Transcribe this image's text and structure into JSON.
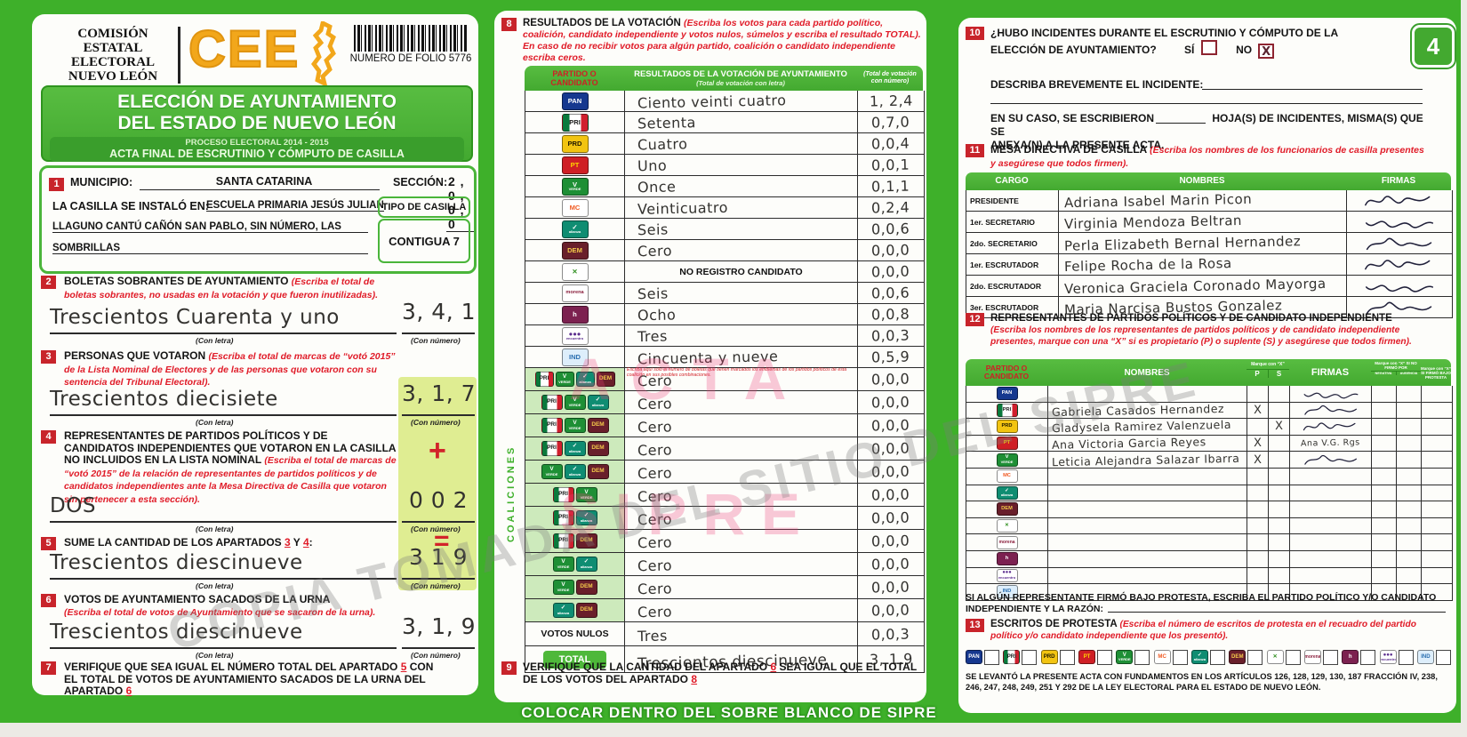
{
  "page": {
    "number": "4",
    "bottom_strip": "COLOCAR DENTRO DEL SOBRE BLANCO DE SIPRE",
    "legal": "SE LEVANTÓ LA PRESENTE ACTA CON FUNDAMENTOS EN LOS ARTÍCULOS 126, 128, 129, 130, 187 FRACCIÓN IV, 238, 246, 247, 248, 249, 251 Y 292 DE LA LEY ELECTORAL PARA EL ESTADO DE NUEVO LEÓN."
  },
  "watermarks": {
    "stamp_line1": "ACTA",
    "stamp_line2": "SIPRE",
    "diagonal": "COPIA TOMADA DEL SITIO DEL SIPRE"
  },
  "header": {
    "org_lines": [
      "COMISIÓN",
      "ESTATAL",
      "ELECTORAL",
      "NUEVO LEÓN"
    ],
    "logo_text": "CEE",
    "folio_label": "NUMERO DE FOLIO 5776",
    "title_line1": "ELECCIÓN DE AYUNTAMIENTO",
    "title_line2": "DEL ESTADO DE NUEVO LEÓN",
    "subtitle1": "PROCESO ELECTORAL  2014 - 2015",
    "subtitle2": "ACTA FINAL DE ESCRUTINIO Y CÓMPUTO DE CASILLA"
  },
  "box1": {
    "num": "1",
    "municipio_label": "MUNICIPIO:",
    "municipio": "SANTA CATARINA",
    "seccion_label": "SECCIÓN:",
    "seccion_digits": "2 , 0 , 0 , 0",
    "instalada_label": "LA CASILLA SE INSTALÓ EN:",
    "lugar_line1": "ESCUELA PRIMARIA JESÚS JULIAN",
    "lugar_line2": "LLAGUNO CANTÚ CAÑÓN SAN PABLO, SIN NÚMERO, LAS",
    "lugar_line3": "SOMBRILLAS",
    "tipo_label": "TIPO DE CASILLA",
    "tipo": "CONTIGUA 7"
  },
  "box2": {
    "num": "2",
    "title": "BOLETAS SOBRANTES DE AYUNTAMIENTO ",
    "instr": "(Escriba el total de boletas sobrantes, no usadas en la votación y que fueron inutilizadas).",
    "letra": "Trescientos Cuarenta y uno",
    "digits": "3, 4, 1",
    "con_letra": "(Con letra)",
    "con_numero": "(Con número)"
  },
  "box3": {
    "num": "3",
    "title": "PERSONAS QUE VOTARON ",
    "instr": "(Escriba el total de marcas de “votó 2015” de la Lista Nominal de Electores y de las personas que votaron con su sentencia del Tribunal Electoral).",
    "letra": "Trescientos diecisiete",
    "digits": "3, 1, 7",
    "con_letra": "(Con letra)",
    "con_numero": "(Con número)"
  },
  "box4": {
    "num": "4",
    "title": "REPRESENTANTES DE PARTIDOS POLÍTICOS Y DE CANDIDATOS INDEPENDIENTES QUE VOTARON EN LA CASILLA NO INCLUIDOS EN LA LISTA NOMINAL ",
    "instr": "(Escriba el total de marcas de “votó 2015” de la relación de representantes de partidos políticos y de candidatos independientes ante la Mesa Directiva de Casilla que votaron sin pertenecer a esta sección).",
    "letra": "DOS",
    "digits": "0 0 2",
    "plus": "+",
    "con_letra": "(Con letra)",
    "con_numero": "(Con número)"
  },
  "box5": {
    "num": "5",
    "title_a": "SUME LA CANTIDAD DE LOS APARTADOS ",
    "ref3": "3",
    "title_b": " Y ",
    "ref4": "4",
    "title_c": ":",
    "letra": "Trescientos diescinueve",
    "digits": "3  1 9",
    "equals": "=",
    "con_letra": "(Con letra)",
    "con_numero": "(Con número)"
  },
  "box6": {
    "num": "6",
    "title": "VOTOS DE AYUNTAMIENTO SACADOS DE LA URNA",
    "instr": "(Escriba el total de votos de Ayuntamiento que se sacaron de la urna).",
    "letra": "Trescientos diescinueve",
    "digits": "3, 1, 9",
    "con_letra": "(Con letra)",
    "con_numero": "(Con número)"
  },
  "box7": {
    "num": "7",
    "text_a": "VERIFIQUE QUE SEA IGUAL EL NÚMERO TOTAL DEL APARTADO ",
    "ref5": "5",
    "text_b": " CON EL TOTAL DE VOTOS DE AYUNTAMIENTO SACADOS DE LA URNA DEL APARTADO ",
    "ref6": "6"
  },
  "box8": {
    "num": "8",
    "title": "RESULTADOS DE LA VOTACIÓN ",
    "instr": "(Escriba los votos para cada partido político, coalición, candidato independiente y votos nulos, súmelos y escriba el resultado TOTAL). En caso de no recibir votos para algún partido, coalición o candidato independiente escriba ceros.",
    "h_party": "PARTIDO O CANDIDATO",
    "h_result": "RESULTADOS DE LA VOTACIÓN DE AYUNTAMIENTO",
    "h_result_sub": "(Total de votación con letra)",
    "h_num": "(Total de votación con número)",
    "coalition_label": "COALICIONES",
    "coalition_note": "Escriba aquí sólo el número de boletas que tienen marcados los emblemas de los partidos políticos de esta coalición en sus posibles combinaciones.",
    "rows": [
      {
        "logos": [
          "pan"
        ],
        "letra": "Ciento veinti cuatro",
        "digits": "1, 2,4"
      },
      {
        "logos": [
          "pri"
        ],
        "letra": "Setenta",
        "digits": "0,7,0"
      },
      {
        "logos": [
          "prd"
        ],
        "letra": "Cuatro",
        "digits": "0,0,4"
      },
      {
        "logos": [
          "pt"
        ],
        "letra": "Uno",
        "digits": "0,0,1"
      },
      {
        "logos": [
          "verde"
        ],
        "letra": "Once",
        "digits": "0,1,1"
      },
      {
        "logos": [
          "mc"
        ],
        "letra": "Veinticuatro",
        "digits": "0,2,4"
      },
      {
        "logos": [
          "alianza"
        ],
        "letra": "Seis",
        "digits": "0,0,6"
      },
      {
        "logos": [
          "democrata"
        ],
        "letra": "Cero",
        "digits": "0,0,0"
      },
      {
        "logos": [
          "cruzada"
        ],
        "printed": "NO REGISTRO CANDIDATO",
        "digits": "0,0,0"
      },
      {
        "logos": [
          "morena"
        ],
        "letra": "Seis",
        "digits": "0,0,6"
      },
      {
        "logos": [
          "humanista"
        ],
        "letra": "Ocho",
        "digits": "0,0,8"
      },
      {
        "logos": [
          "encuentro"
        ],
        "letra": "Tres",
        "digits": "0,0,3"
      },
      {
        "logos": [
          "independiente"
        ],
        "letra": "Cincuenta y nueve",
        "digits": "0,5,9"
      },
      {
        "coalition": true,
        "note": true,
        "logos": [
          "pri",
          "verde",
          "alianza",
          "democrata"
        ],
        "letra": "Cero",
        "digits": "0,0,0"
      },
      {
        "coalition": true,
        "logos": [
          "pri",
          "verde",
          "alianza"
        ],
        "letra": "Cero",
        "digits": "0,0,0"
      },
      {
        "coalition": true,
        "logos": [
          "pri",
          "verde",
          "democrata"
        ],
        "letra": "Cero",
        "digits": "0,0,0"
      },
      {
        "coalition": true,
        "logos": [
          "pri",
          "alianza",
          "democrata"
        ],
        "letra": "Cero",
        "digits": "0,0,0"
      },
      {
        "coalition": true,
        "logos": [
          "verde",
          "alianza",
          "democrata"
        ],
        "letra": "Cero",
        "digits": "0,0,0"
      },
      {
        "coalition": true,
        "logos": [
          "pri",
          "verde"
        ],
        "letra": "Cero",
        "digits": "0,0,0"
      },
      {
        "coalition": true,
        "logos": [
          "pri",
          "alianza"
        ],
        "letra": "Cero",
        "digits": "0,0,0"
      },
      {
        "coalition": true,
        "logos": [
          "pri",
          "democrata"
        ],
        "letra": "Cero",
        "digits": "0,0,0"
      },
      {
        "coalition": true,
        "logos": [
          "verde",
          "alianza"
        ],
        "letra": "Cero",
        "digits": "0,0,0"
      },
      {
        "coalition": true,
        "logos": [
          "verde",
          "democrata"
        ],
        "letra": "Cero",
        "digits": "0,0,0"
      },
      {
        "coalition": true,
        "logos": [
          "alianza",
          "democrata"
        ],
        "letra": "Cero",
        "digits": "0,0,0"
      },
      {
        "label": "VOTOS NULOS",
        "letra": "Tres",
        "digits": "0,0,3"
      },
      {
        "label": "TOTAL",
        "total": true,
        "letra": "Trescientos diescinueve",
        "digits": "3, 1,9"
      }
    ]
  },
  "box9": {
    "num": "9",
    "text_a": "VERIFIQUE QUE LA CANTIDAD DEL APARTADO ",
    "ref6": "6",
    "text_b": " SEA IGUAL QUE EL TOTAL DE LOS VOTOS DEL APARTADO ",
    "ref8": "8"
  },
  "box10": {
    "num": "10",
    "question_l1": "¿HUBO INCIDENTES DURANTE EL ESCRUTINIO Y CÓMPUTO DE LA",
    "question_l2": "ELECCIÓN DE AYUNTAMIENTO?",
    "si": "SÍ",
    "no": "NO",
    "no_mark": "X",
    "describa": "DESCRIBA BREVEMENTE EL INCIDENTE:",
    "caso_a": "EN SU CASO, SE ESCRIBIERON",
    "caso_b": "HOJA(S) DE INCIDENTES, MISMA(S) QUE SE",
    "caso_c": "ANEXA(N) A LA PRESENTE ACTA."
  },
  "box11": {
    "num": "11",
    "title": "MESA DIRECTIVA DE CASILLA ",
    "instr": "(Escriba los nombres de los funcionarios de casilla presentes y asegúrese que todos firmen).",
    "h_cargo": "CARGO",
    "h_nombres": "NOMBRES",
    "h_firmas": "FIRMAS",
    "rows": [
      {
        "cargo": "PRESIDENTE",
        "nombre": "Adriana Isabel Marin Picon",
        "sig": true
      },
      {
        "cargo": "1er. SECRETARIO",
        "nombre": "Virginia Mendoza Beltran",
        "sig": true
      },
      {
        "cargo": "2do. SECRETARIO",
        "nombre": "Perla Elizabeth Bernal Hernandez",
        "sig": true
      },
      {
        "cargo": "1er. ESCRUTADOR",
        "nombre": "Felipe Rocha de la Rosa",
        "sig": true
      },
      {
        "cargo": "2do. ESCRUTADOR",
        "nombre": "Veronica Graciela Coronado Mayorga",
        "sig": true
      },
      {
        "cargo": "3er. ESCRUTADOR",
        "nombre": "Maria Narcisa Bustos Gonzalez",
        "sig": true
      }
    ]
  },
  "box12": {
    "num": "12",
    "title": "REPRESENTANTES DE PARTIDOS POLÍTICOS Y DE CANDIDATO INDEPENDIENTE",
    "instr": "(Escriba los nombres de los representantes de partidos políticos y de candidato independiente presentes, marque con una “X” si es propietario (P) o suplente (S) y asegúrese que todos firmen).",
    "h_party": "PARTIDO O CANDIDATO",
    "h_nombres": "NOMBRES",
    "h_marque": "Marque con “X”",
    "h_p": "P",
    "h_s": "S",
    "h_firmas": "FIRMAS",
    "h_nofirmo": "Marque con “X” SI NO FIRMÓ POR",
    "h_negativa": "NEGATIVA",
    "h_ausencia": "AUSENCIA",
    "h_protesta": "Marque con “X” SI FIRMÓ BAJO PROTESTA",
    "rows": [
      {
        "logo": "pan",
        "nombre": "",
        "p": "",
        "s": "",
        "sig": true,
        "firma": ""
      },
      {
        "logo": "pri",
        "nombre": "Gabriela Casados Hernandez",
        "p": "X",
        "s": "",
        "sig": true,
        "firma": ""
      },
      {
        "logo": "prd",
        "nombre": "Gladysela Ramirez Valenzuela",
        "p": "",
        "s": "X",
        "sig": true,
        "firma": ""
      },
      {
        "logo": "pt",
        "nombre": "Ana Victoria Garcia Reyes",
        "p": "X",
        "s": "",
        "sig": false,
        "firma": "Ana V.G. Rgs"
      },
      {
        "logo": "verde",
        "nombre": "Leticia Alejandra Salazar Ibarra",
        "p": "X",
        "s": "",
        "sig": true,
        "firma": ""
      },
      {
        "logo": "mc",
        "nombre": "",
        "p": "",
        "s": "",
        "sig": false,
        "firma": ""
      },
      {
        "logo": "alianza",
        "nombre": "",
        "p": "",
        "s": "",
        "sig": false,
        "firma": ""
      },
      {
        "logo": "democrata",
        "nombre": "",
        "p": "",
        "s": "",
        "sig": false,
        "firma": ""
      },
      {
        "logo": "cruzada",
        "nombre": "",
        "p": "",
        "s": "",
        "sig": false,
        "firma": ""
      },
      {
        "logo": "morena",
        "nombre": "",
        "p": "",
        "s": "",
        "sig": false,
        "firma": ""
      },
      {
        "logo": "humanista",
        "nombre": "",
        "p": "",
        "s": "",
        "sig": false,
        "firma": ""
      },
      {
        "logo": "encuentro",
        "nombre": "",
        "p": "",
        "s": "",
        "sig": false,
        "firma": ""
      },
      {
        "logo": "independiente",
        "nombre": "",
        "p": "",
        "s": "",
        "sig": false,
        "firma": ""
      }
    ],
    "protesta_note_a": "SI ALGÚN REPRESENTANTE FIRMÓ BAJO PROTESTA, ESCRIBA EL PARTIDO POLÍTICO Y/O CANDIDATO",
    "protesta_note_b": "INDEPENDIENTE Y LA RAZÓN:"
  },
  "box13": {
    "num": "13",
    "title": "ESCRITOS DE PROTESTA ",
    "instr": "(Escriba el número de escritos de protesta en el recuadro del partido político y/o candidato independiente que los presentó).",
    "parties": [
      "pan",
      "pri",
      "prd",
      "pt",
      "verde",
      "mc",
      "alianza",
      "democrata",
      "cruzada",
      "morena",
      "humanista",
      "encuentro",
      "independiente"
    ]
  },
  "party_logos": {
    "pan": {
      "abbr": "PAN",
      "bg": "#16388f",
      "fg": "#ffffff"
    },
    "pri": {
      "abbr": "PRI",
      "bg": "stripes",
      "fg": "#1a1a1a"
    },
    "prd": {
      "abbr": "PRD",
      "bg": "#f2c411",
      "fg": "#201a00"
    },
    "pt": {
      "abbr": "PT",
      "bg": "#cf1f25",
      "fg": "#ffd400"
    },
    "verde": {
      "abbr": "V",
      "sub": "VERDE",
      "bg": "#1e8f35",
      "fg": "#ffffff"
    },
    "mc": {
      "abbr": "MC",
      "bg": "#ffffff",
      "fg": "#f05a22"
    },
    "alianza": {
      "abbr": "✓",
      "sub": "alianza",
      "bg": "#0f8d72",
      "fg": "#ffffff"
    },
    "democrata": {
      "abbr": "DEM",
      "bg": "#691f2b",
      "fg": "#f3c94a"
    },
    "cruzada": {
      "abbr": "✕",
      "bg": "#ffffff",
      "fg": "#2f8f1f"
    },
    "morena": {
      "abbr": "morena",
      "bg": "#ffffff",
      "fg": "#8a1f3d"
    },
    "humanista": {
      "abbr": "h",
      "bg": "#7c2150",
      "fg": "#ffffff"
    },
    "encuentro": {
      "abbr": "●●●",
      "sub": "encuentro",
      "bg": "#ffffff",
      "fg": "#5b2d8e"
    },
    "independiente": {
      "abbr": "IND",
      "bg": "#ddeefb",
      "fg": "#2a6fb0"
    }
  }
}
